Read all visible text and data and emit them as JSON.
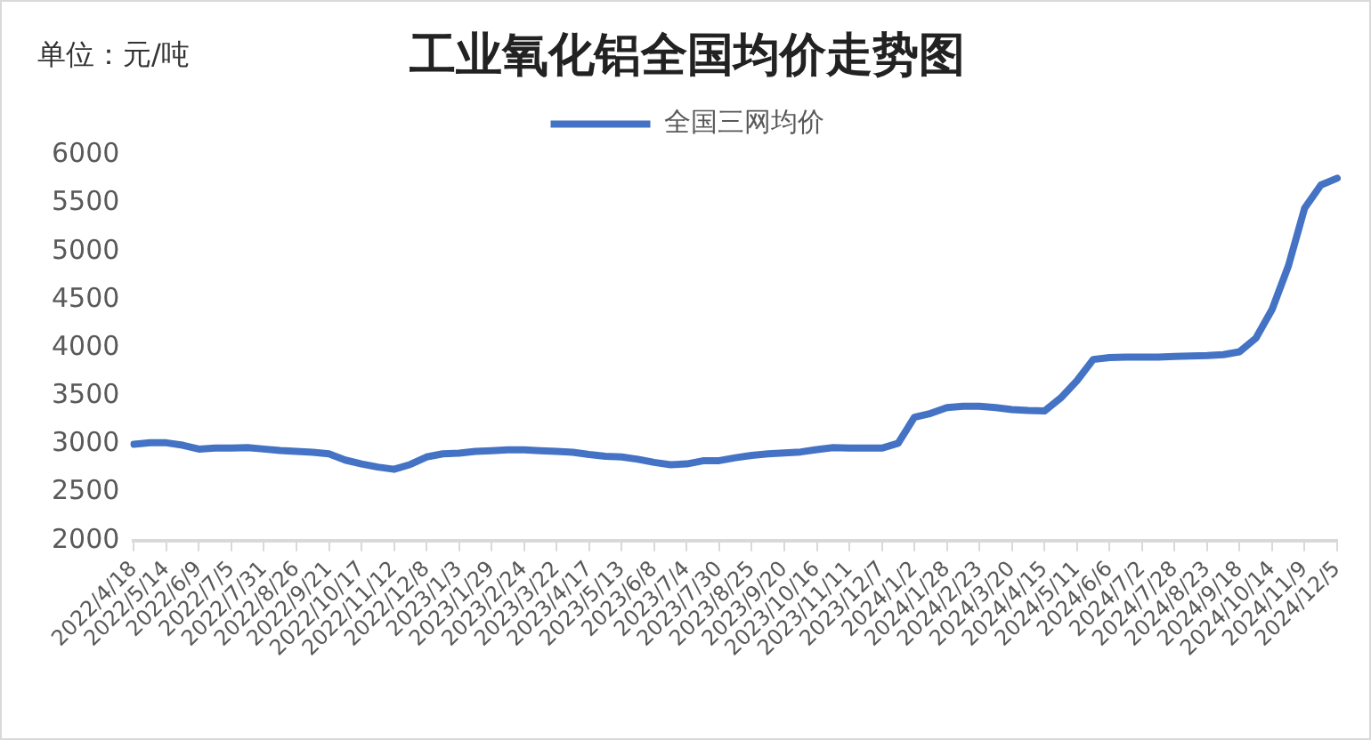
{
  "chart_data": {
    "type": "line",
    "title": "工业氧化铝全国均价走势图",
    "ylabel": "单位：元/吨",
    "categories": [
      "2022/4/18",
      null,
      "2022/5/14",
      null,
      "2022/6/9",
      null,
      "2022/7/5",
      null,
      "2022/7/31",
      null,
      "2022/8/26",
      null,
      "2022/9/21",
      null,
      "2022/10/17",
      null,
      "2022/11/12",
      null,
      "2022/12/8",
      null,
      "2023/1/3",
      null,
      "2023/1/29",
      null,
      "2023/2/24",
      null,
      "2023/3/22",
      null,
      "2023/4/17",
      null,
      "2023/5/13",
      null,
      "2023/6/8",
      null,
      "2023/7/4",
      null,
      "2023/7/30",
      null,
      "2023/8/25",
      null,
      "2023/9/20",
      null,
      "2023/10/16",
      null,
      "2023/11/11",
      null,
      "2023/12/7",
      null,
      "2024/1/2",
      null,
      "2024/1/28",
      null,
      "2024/2/23",
      null,
      "2024/3/20",
      null,
      "2024/4/15",
      null,
      "2024/5/11",
      null,
      "2024/6/6",
      null,
      "2024/7/2",
      null,
      "2024/7/28",
      null,
      "2024/8/23",
      null,
      "2024/9/18",
      null,
      "2024/10/14",
      null,
      "2024/11/9",
      null,
      "2024/12/5"
    ],
    "series": [
      {
        "name": "全国三网均价",
        "color": "#4472c4",
        "values": [
          3000,
          3015,
          3015,
          2990,
          2950,
          2960,
          2960,
          2966,
          2950,
          2935,
          2925,
          2917,
          2900,
          2836,
          2796,
          2763,
          2740,
          2790,
          2868,
          2900,
          2908,
          2925,
          2933,
          2941,
          2941,
          2933,
          2925,
          2917,
          2893,
          2876,
          2868,
          2844,
          2812,
          2787,
          2796,
          2828,
          2830,
          2860,
          2885,
          2900,
          2910,
          2920,
          2945,
          2965,
          2960,
          2960,
          2960,
          3010,
          3280,
          3320,
          3380,
          3395,
          3395,
          3380,
          3360,
          3350,
          3345,
          3480,
          3660,
          3880,
          3900,
          3905,
          3905,
          3905,
          3910,
          3915,
          3920,
          3930,
          3960,
          4100,
          4400,
          4850,
          5450,
          5690,
          5760
        ]
      }
    ],
    "ylim": [
      2000,
      6000
    ],
    "yticks": [
      2000,
      2500,
      3000,
      3500,
      4000,
      4500,
      5000,
      5500,
      6000
    ],
    "grid": false,
    "legend": "top",
    "marker": "none",
    "line_style": "solid"
  }
}
